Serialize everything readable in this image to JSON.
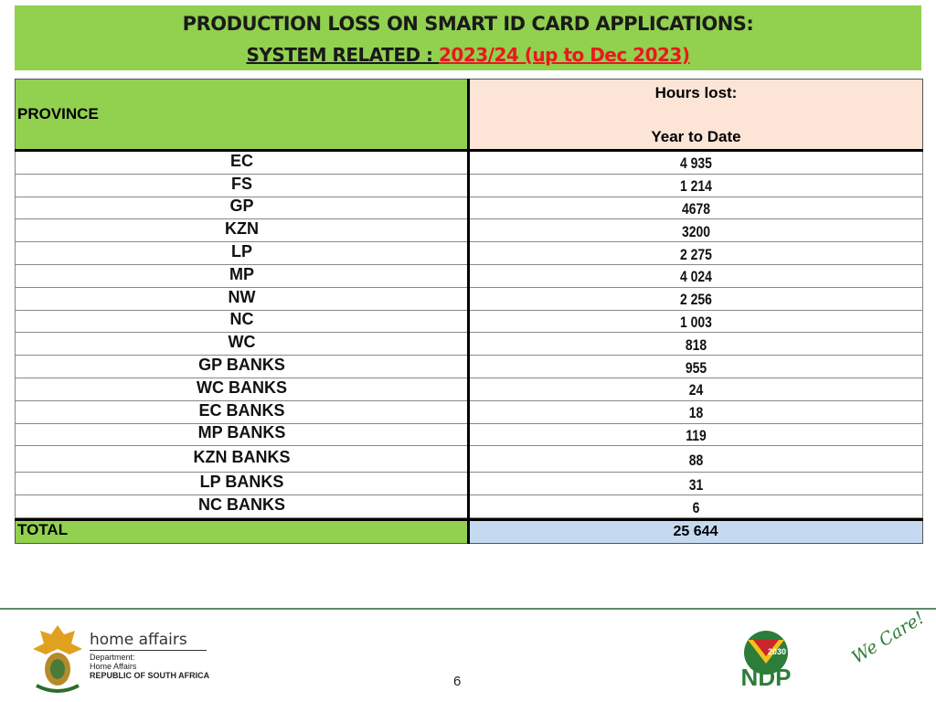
{
  "header": {
    "title_line1": "PRODUCTION LOSS ON SMART ID CARD APPLICATIONS:",
    "title_line2_prefix": "SYSTEM RELATED : ",
    "title_line2_highlight": "2023/24 (up to Dec 2023)"
  },
  "table": {
    "columns": [
      "PROVINCE",
      "Hours lost:",
      "Year to Date"
    ],
    "rows": [
      [
        "EC",
        "4 935"
      ],
      [
        "FS",
        "1 214"
      ],
      [
        "GP",
        "4678"
      ],
      [
        "KZN",
        "3200"
      ],
      [
        "LP",
        "2 275"
      ],
      [
        "MP",
        "4 024"
      ],
      [
        "NW",
        "2 256"
      ],
      [
        "NC",
        "1 003"
      ],
      [
        "WC",
        "818"
      ],
      [
        "GP BANKS",
        "955"
      ],
      [
        "WC BANKS",
        "24"
      ],
      [
        "EC BANKS",
        "18"
      ],
      [
        "MP BANKS",
        "119"
      ],
      [
        "KZN BANKS",
        "88"
      ],
      [
        "LP BANKS",
        "31"
      ],
      [
        "NC BANKS",
        "6"
      ]
    ],
    "total": [
      "TOTAL",
      "25 644"
    ]
  },
  "footer": {
    "brand": "home affairs",
    "dept_line1": "Department:",
    "dept_line2": "Home Affairs",
    "dept_line3": "REPUBLIC OF SOUTH AFRICA",
    "page_number": "6",
    "ndp_year": "2030",
    "ndp": "NDP",
    "slogan": "We Care!"
  }
}
